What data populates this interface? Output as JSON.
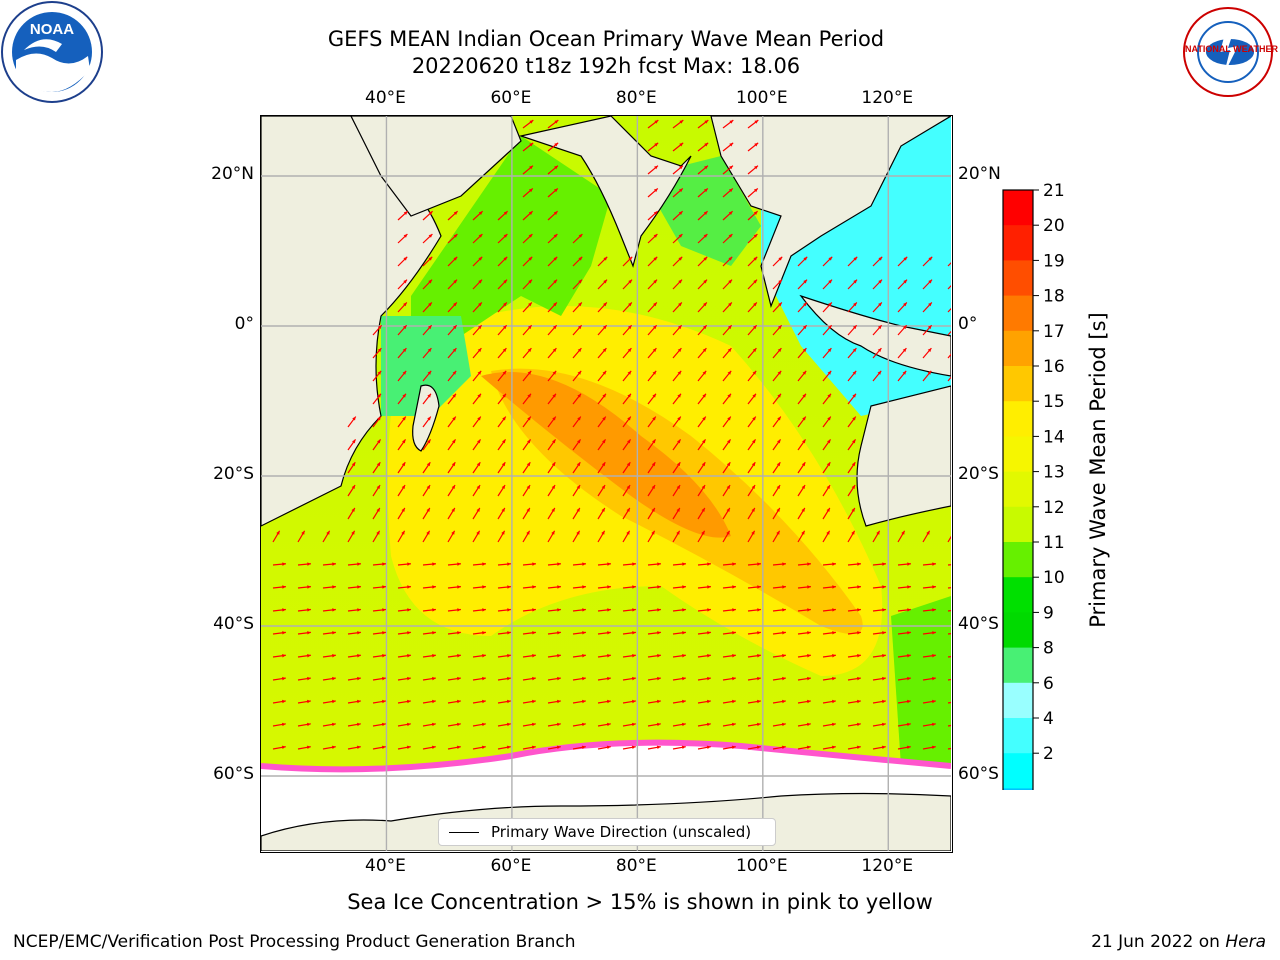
{
  "header": {
    "title_line1": "GEFS MEAN Indian Ocean Primary Wave Mean Period",
    "title_line2": "20220620 t18z 192h fcst   Max: 18.06"
  },
  "logos": {
    "left": {
      "name": "noaa-logo",
      "text": "NOAA"
    },
    "right": {
      "name": "nws-logo",
      "text": "NATIONAL WEATHER SERVICE"
    }
  },
  "map": {
    "lon_range": [
      20,
      130
    ],
    "lat_range": [
      -70,
      28
    ],
    "lon_ticks": [
      "40°E",
      "60°E",
      "80°E",
      "100°E",
      "120°E"
    ],
    "lat_ticks": [
      "20°N",
      "0°",
      "20°S",
      "40°S",
      "60°S"
    ],
    "grid": true,
    "arrow_color": "#ff0000",
    "land_color": "#efefdf",
    "ice_color": "#ffffff"
  },
  "legend": {
    "label": "Primary Wave Direction (unscaled)"
  },
  "colorbar": {
    "label": "Primary Wave Mean Period [s]",
    "ticks": [
      "21",
      "20",
      "19",
      "18",
      "17",
      "16",
      "15",
      "14",
      "13",
      "12",
      "11",
      "10",
      "9",
      "8",
      "6",
      "4",
      "2"
    ],
    "colors": [
      "#ff0000",
      "#ff2000",
      "#ff4e00",
      "#ff7a00",
      "#ffa200",
      "#ffc800",
      "#ffee00",
      "#f6f600",
      "#e2f900",
      "#c8fa00",
      "#66f000",
      "#00e000",
      "#00da00",
      "#48f074",
      "#99ffff",
      "#44ffff",
      "#00ffff",
      "#00c0ff",
      "#0060ff"
    ],
    "extend_color": "#0000ff"
  },
  "caption": "Sea Ice Concentration > 15% is shown in pink to yellow",
  "footer": {
    "left": "NCEP/EMC/Verification Post Processing Product Generation Branch",
    "date": "21 Jun 2022 on",
    "host": "Hera"
  }
}
